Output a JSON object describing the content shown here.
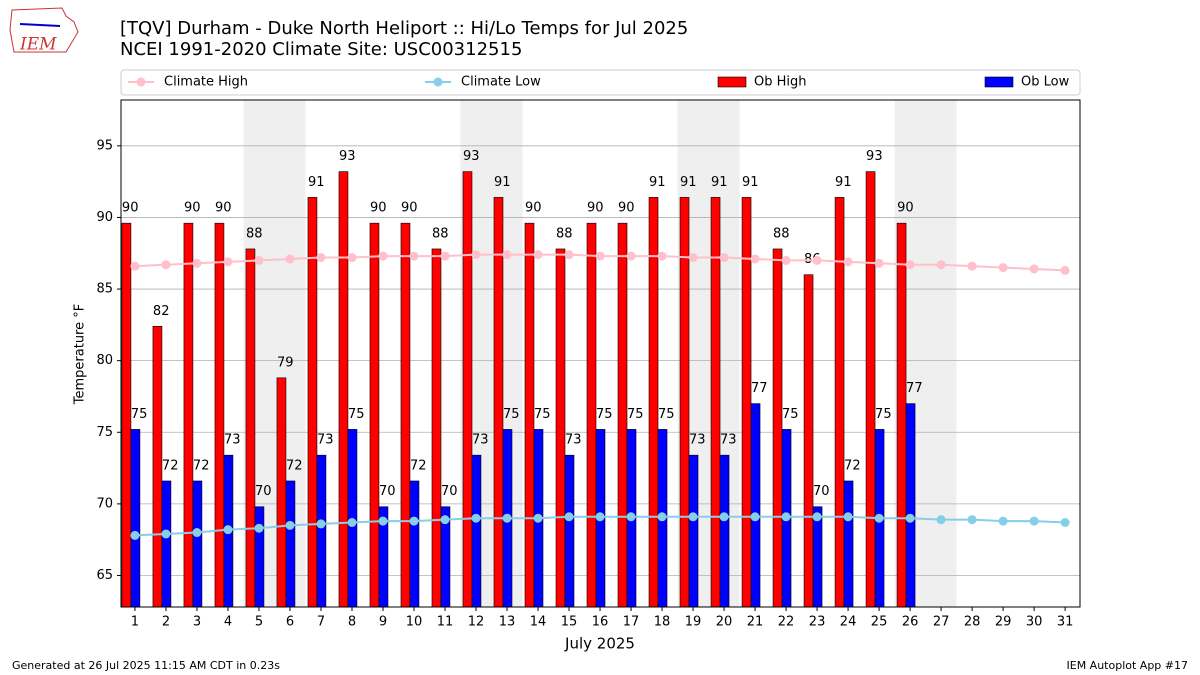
{
  "chart_data": {
    "type": "bar",
    "title": "[TQV] Durham - Duke North Heliport :: Hi/Lo Temps for Jul 2025",
    "subtitle": "NCEI 1991-2020 Climate Site: USC00312515",
    "xlabel": "July 2025",
    "ylabel": "Temperature °F",
    "footer_left": "Generated at 26 Jul 2025 11:15 AM CDT in 0.23s",
    "footer_right": "IEM Autoplot App #17",
    "logo": "IEM",
    "x": [
      1,
      2,
      3,
      4,
      5,
      6,
      7,
      8,
      9,
      10,
      11,
      12,
      13,
      14,
      15,
      16,
      17,
      18,
      19,
      20,
      21,
      22,
      23,
      24,
      25,
      26,
      27,
      28,
      29,
      30,
      31
    ],
    "xlim": [
      0.55,
      31.48
    ],
    "xticks": [
      1,
      2,
      3,
      4,
      5,
      6,
      7,
      8,
      9,
      10,
      11,
      12,
      13,
      14,
      15,
      16,
      17,
      18,
      19,
      20,
      21,
      22,
      23,
      24,
      25,
      26,
      27,
      28,
      29,
      30,
      31
    ],
    "ylim": [
      62.8,
      98.2
    ],
    "yticks": [
      65,
      70,
      75,
      80,
      85,
      90,
      95
    ],
    "grid": true,
    "shaded": [
      [
        4.5,
        6.5
      ],
      [
        11.5,
        13.5
      ],
      [
        18.5,
        20.5
      ],
      [
        25.5,
        27.5
      ]
    ],
    "shade_color": "#efefef",
    "series": [
      {
        "name": "Climate High",
        "type": "line",
        "color": "#ffc0cb",
        "values": [
          86.6,
          86.7,
          86.8,
          86.9,
          87.0,
          87.1,
          87.2,
          87.2,
          87.3,
          87.3,
          87.3,
          87.4,
          87.4,
          87.4,
          87.4,
          87.3,
          87.3,
          87.3,
          87.2,
          87.2,
          87.1,
          87.0,
          87.0,
          86.9,
          86.8,
          86.7,
          86.7,
          86.6,
          86.5,
          86.4,
          86.3
        ]
      },
      {
        "name": "Climate Low",
        "type": "line",
        "color": "#87ceeb",
        "values": [
          67.8,
          67.9,
          68.0,
          68.2,
          68.3,
          68.5,
          68.6,
          68.7,
          68.8,
          68.8,
          68.9,
          69.0,
          69.0,
          69.0,
          69.1,
          69.1,
          69.1,
          69.1,
          69.1,
          69.1,
          69.1,
          69.1,
          69.1,
          69.1,
          69.0,
          69.0,
          68.9,
          68.9,
          68.8,
          68.8,
          68.7
        ]
      },
      {
        "name": "Ob High",
        "type": "bar",
        "color": "#ff0000",
        "values": [
          89.6,
          82.4,
          89.6,
          89.6,
          87.8,
          78.8,
          91.4,
          93.2,
          89.6,
          89.6,
          87.8,
          93.2,
          91.4,
          89.6,
          87.8,
          89.6,
          89.6,
          91.4,
          91.4,
          91.4,
          91.4,
          87.8,
          86.0,
          91.4,
          93.2,
          89.6,
          null,
          null,
          null,
          null,
          null
        ],
        "value_labels": [
          "90",
          "82",
          "90",
          "90",
          "88",
          "79",
          "91",
          "93",
          "90",
          "90",
          "88",
          "93",
          "91",
          "90",
          "88",
          "90",
          "90",
          "91",
          "91",
          "91",
          "91",
          "88",
          "86",
          "91",
          "93",
          "90",
          null,
          null,
          null,
          null,
          null
        ]
      },
      {
        "name": "Ob Low",
        "type": "bar",
        "color": "#0000ff",
        "values": [
          75.2,
          71.6,
          71.6,
          73.4,
          69.8,
          71.6,
          73.4,
          75.2,
          69.8,
          71.6,
          69.8,
          73.4,
          75.2,
          75.2,
          73.4,
          75.2,
          75.2,
          75.2,
          73.4,
          73.4,
          77.0,
          75.2,
          69.8,
          71.6,
          75.2,
          77.0,
          null,
          null,
          null,
          null,
          null
        ],
        "value_labels": [
          "75",
          "72",
          "72",
          "73",
          "70",
          "72",
          "73",
          "75",
          "70",
          "72",
          "70",
          "73",
          "75",
          "75",
          "73",
          "75",
          "75",
          "75",
          "73",
          "73",
          "77",
          "75",
          "70",
          "72",
          "75",
          "77",
          null,
          null,
          null,
          null,
          null
        ]
      }
    ]
  }
}
